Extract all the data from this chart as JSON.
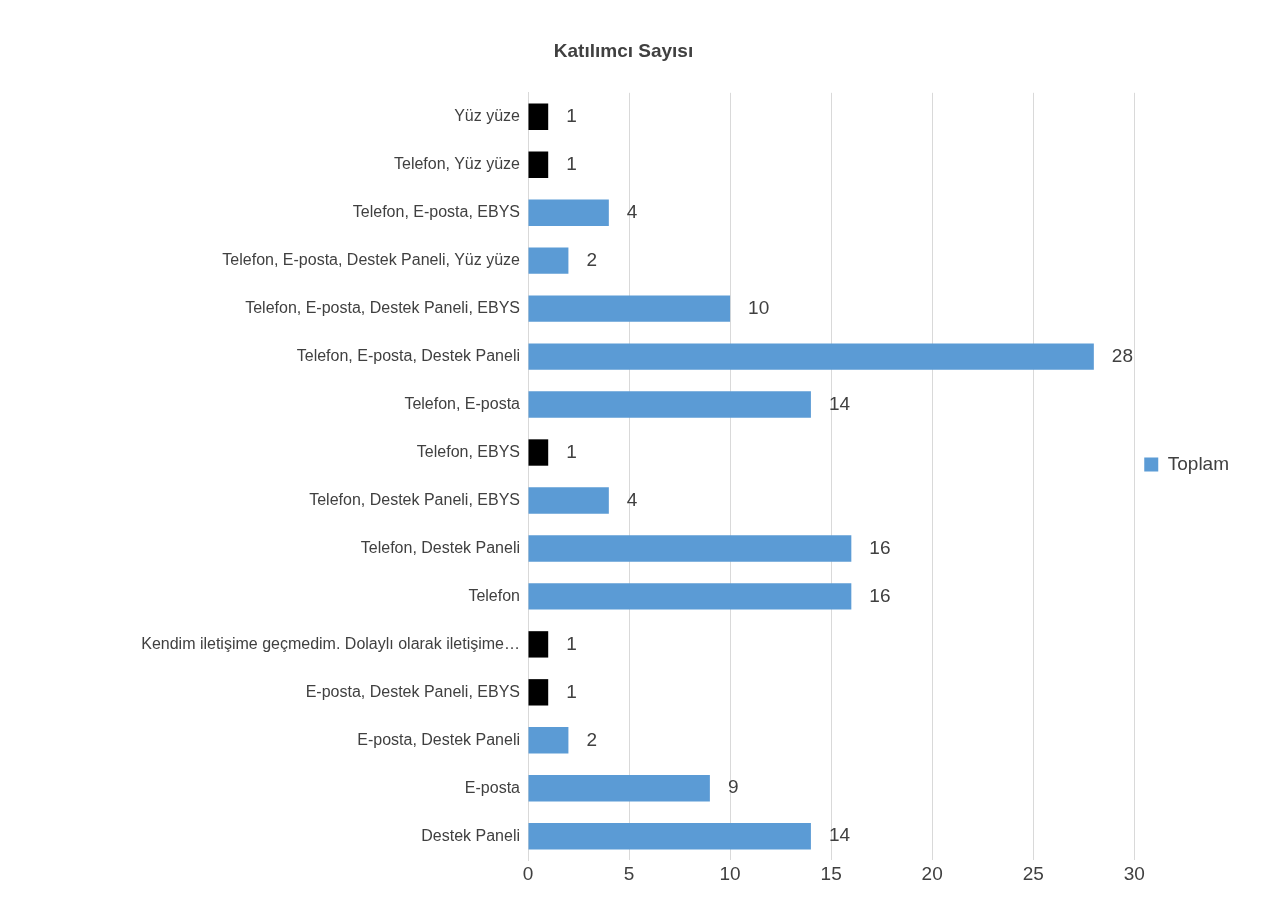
{
  "chart_data": {
    "type": "bar",
    "orientation": "horizontal",
    "title": "Katılımcı Sayısı",
    "categories": [
      "Yüz yüze",
      "Telefon, Yüz yüze",
      "Telefon, E-posta, EBYS",
      "Telefon, E-posta, Destek Paneli, Yüz yüze",
      "Telefon, E-posta, Destek Paneli, EBYS",
      "Telefon, E-posta, Destek Paneli",
      "Telefon, E-posta",
      "Telefon, EBYS",
      "Telefon, Destek Paneli, EBYS",
      "Telefon, Destek Paneli",
      "Telefon",
      "Kendim iletişime geçmedim. Dolaylı olarak iletişime…",
      "E-posta, Destek Paneli, EBYS",
      "E-posta, Destek Paneli",
      "E-posta",
      "Destek Paneli"
    ],
    "series": [
      {
        "name": "Toplam",
        "color": "#5b9bd5",
        "values": [
          1,
          1,
          4,
          2,
          10,
          28,
          14,
          1,
          4,
          16,
          16,
          1,
          1,
          2,
          9,
          14
        ],
        "colors": [
          "#000000",
          "#000000",
          "#5b9bd5",
          "#5b9bd5",
          "#5b9bd5",
          "#5b9bd5",
          "#5b9bd5",
          "#000000",
          "#5b9bd5",
          "#5b9bd5",
          "#5b9bd5",
          "#000000",
          "#000000",
          "#5b9bd5",
          "#5b9bd5",
          "#5b9bd5"
        ]
      }
    ],
    "xlim": [
      0,
      30
    ],
    "xticks": [
      0,
      5,
      10,
      15,
      20,
      25,
      30
    ],
    "grid": "x",
    "legend": "right",
    "data_labels": true
  }
}
